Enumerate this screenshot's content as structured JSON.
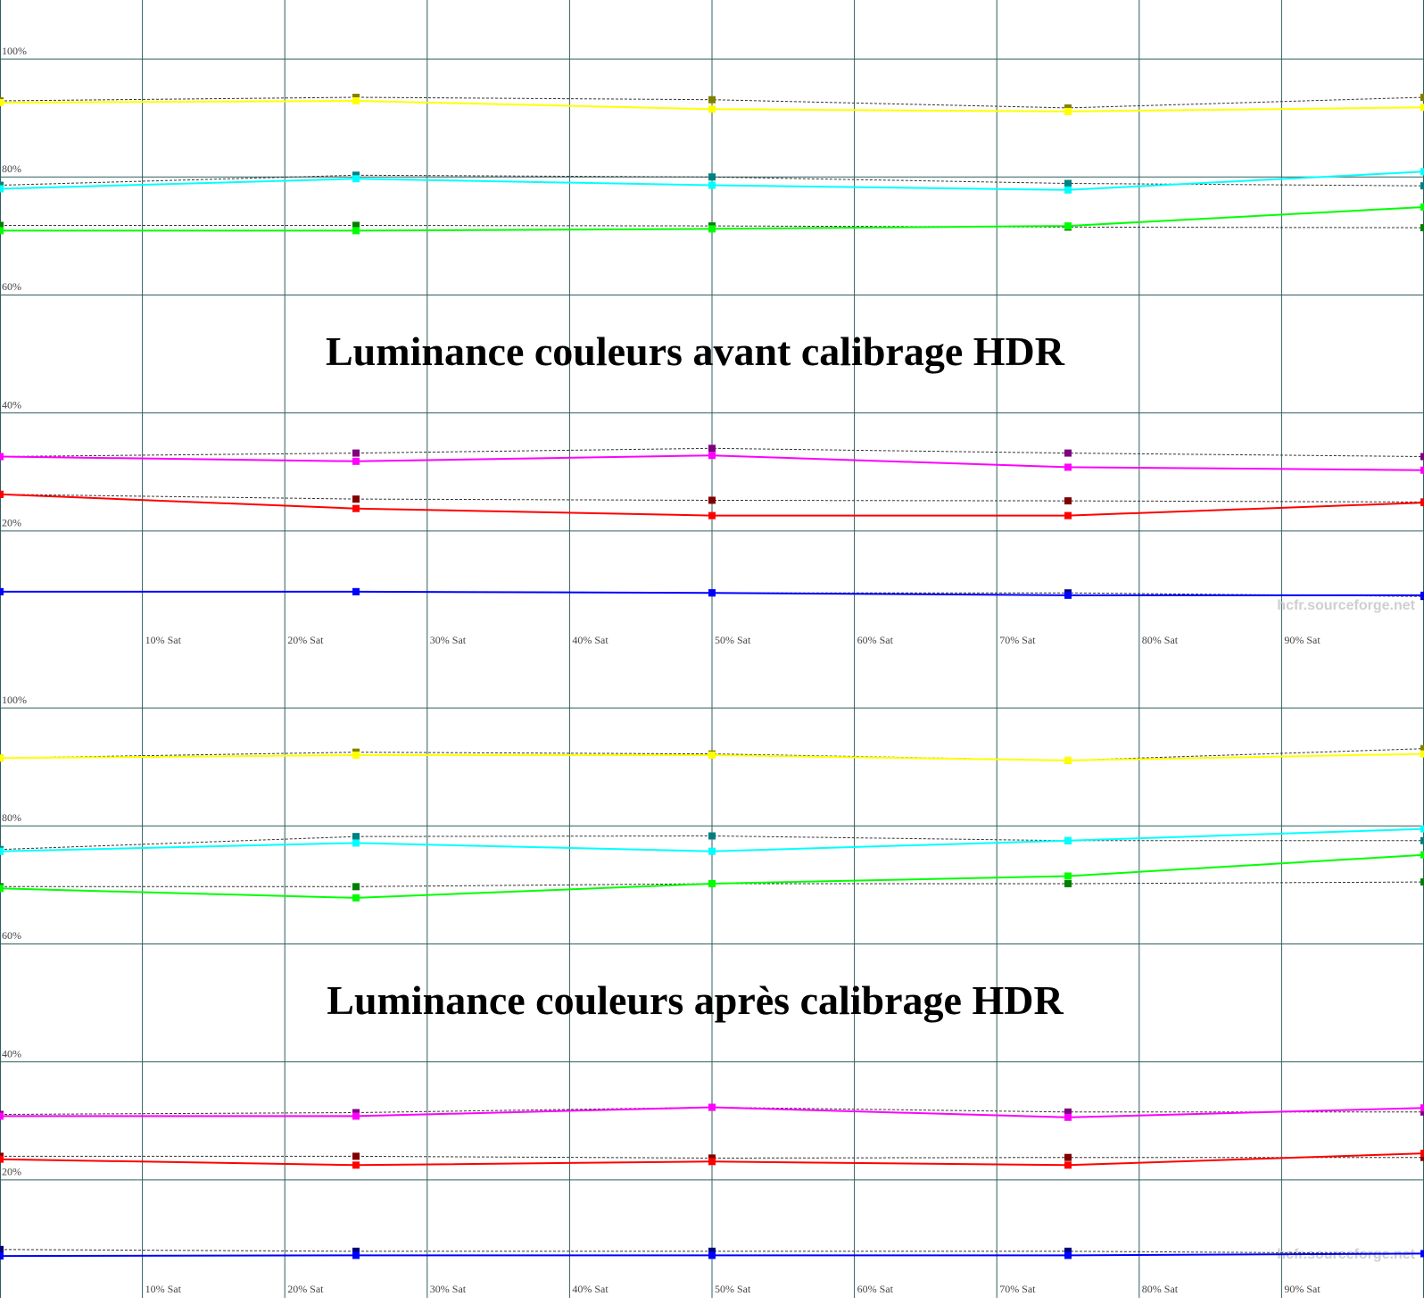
{
  "chart_data": [
    {
      "type": "line",
      "title": "Luminance couleurs avant calibrage HDR",
      "watermark": "hcfr.sourceforge.net",
      "x": [
        0,
        25,
        50,
        75,
        100
      ],
      "xlim": [
        0,
        100
      ],
      "ylim": [
        0,
        110
      ],
      "grid": true,
      "xticks": [
        {
          "value": 10,
          "label": "10% Sat"
        },
        {
          "value": 20,
          "label": "20% Sat"
        },
        {
          "value": 30,
          "label": "30% Sat"
        },
        {
          "value": 40,
          "label": "40% Sat"
        },
        {
          "value": 50,
          "label": "50% Sat"
        },
        {
          "value": 60,
          "label": "60% Sat"
        },
        {
          "value": 70,
          "label": "70% Sat"
        },
        {
          "value": 80,
          "label": "80% Sat"
        },
        {
          "value": 90,
          "label": "90% Sat"
        }
      ],
      "yticks": [
        {
          "value": 20,
          "label": "20%"
        },
        {
          "value": 40,
          "label": "40%"
        },
        {
          "value": 60,
          "label": "60%"
        },
        {
          "value": 80,
          "label": "80%"
        },
        {
          "value": 100,
          "label": "100%"
        }
      ],
      "series": [
        {
          "color": "#808000",
          "style": "dashed",
          "values": [
            92.9,
            93.5,
            93.1,
            91.7,
            93.5
          ]
        },
        {
          "color": "#ffff00",
          "style": "solid",
          "values": [
            92.6,
            92.9,
            91.5,
            91.1,
            91.8
          ]
        },
        {
          "color": "#008080",
          "style": "dashed",
          "values": [
            78.6,
            80.3,
            80.0,
            78.9,
            78.5
          ]
        },
        {
          "color": "#00ffff",
          "style": "solid",
          "values": [
            78.0,
            79.7,
            78.6,
            77.8,
            80.9
          ]
        },
        {
          "color": "#008000",
          "style": "dashed",
          "values": [
            71.8,
            71.8,
            71.7,
            71.5,
            71.4
          ]
        },
        {
          "color": "#00ff00",
          "style": "solid",
          "values": [
            70.9,
            70.9,
            71.2,
            71.7,
            74.9
          ]
        },
        {
          "color": "#800080",
          "style": "dashed",
          "values": [
            32.6,
            33.2,
            34.0,
            33.2,
            32.6
          ]
        },
        {
          "color": "#ff00ff",
          "style": "solid",
          "values": [
            32.6,
            31.8,
            32.8,
            30.8,
            30.3
          ]
        },
        {
          "color": "#800000",
          "style": "dashed",
          "values": [
            26.2,
            25.4,
            25.2,
            25.1,
            24.9
          ]
        },
        {
          "color": "#ff0000",
          "style": "solid",
          "values": [
            26.2,
            23.8,
            22.6,
            22.6,
            24.8
          ]
        },
        {
          "color": "#000080",
          "style": "dashed",
          "values": [
            9.7,
            9.7,
            9.5,
            9.5,
            8.9
          ]
        },
        {
          "color": "#0000ff",
          "style": "solid",
          "values": [
            9.7,
            9.7,
            9.5,
            9.1,
            9.1
          ]
        }
      ]
    },
    {
      "type": "line",
      "title": "Luminance couleurs après calibrage HDR",
      "watermark": "hcfr.sourceforge.net",
      "x": [
        0,
        25,
        50,
        75,
        100
      ],
      "xlim": [
        0,
        100
      ],
      "ylim": [
        0,
        110
      ],
      "grid": true,
      "xticks": [
        {
          "value": 10,
          "label": "10% Sat"
        },
        {
          "value": 20,
          "label": "20% Sat"
        },
        {
          "value": 30,
          "label": "30% Sat"
        },
        {
          "value": 40,
          "label": "40% Sat"
        },
        {
          "value": 50,
          "label": "50% Sat"
        },
        {
          "value": 60,
          "label": "60% Sat"
        },
        {
          "value": 70,
          "label": "70% Sat"
        },
        {
          "value": 80,
          "label": "80% Sat"
        },
        {
          "value": 90,
          "label": "90% Sat"
        }
      ],
      "yticks": [
        {
          "value": 20,
          "label": "20%"
        },
        {
          "value": 40,
          "label": "40%"
        },
        {
          "value": 60,
          "label": "60%"
        },
        {
          "value": 80,
          "label": "80%"
        },
        {
          "value": 100,
          "label": "100%"
        }
      ],
      "series": [
        {
          "color": "#808000",
          "style": "dashed",
          "values": [
            91.5,
            92.5,
            92.2,
            91.1,
            93.1
          ]
        },
        {
          "color": "#ffff00",
          "style": "solid",
          "values": [
            91.5,
            92.0,
            92.0,
            91.1,
            92.2
          ]
        },
        {
          "color": "#008080",
          "style": "dashed",
          "values": [
            76.0,
            78.2,
            78.3,
            77.5,
            77.5
          ]
        },
        {
          "color": "#00ffff",
          "style": "solid",
          "values": [
            75.7,
            77.1,
            75.7,
            77.5,
            79.5
          ]
        },
        {
          "color": "#008000",
          "style": "dashed",
          "values": [
            69.7,
            69.7,
            70.2,
            70.2,
            70.5
          ]
        },
        {
          "color": "#00ff00",
          "style": "solid",
          "values": [
            69.4,
            67.8,
            70.2,
            71.5,
            75.1
          ]
        },
        {
          "color": "#800080",
          "style": "dashed",
          "values": [
            31.1,
            31.4,
            32.3,
            31.5,
            31.5
          ]
        },
        {
          "color": "#ff00ff",
          "style": "solid",
          "values": [
            30.8,
            30.8,
            32.3,
            30.6,
            32.2
          ]
        },
        {
          "color": "#800000",
          "style": "dashed",
          "values": [
            24.0,
            24.0,
            23.7,
            23.8,
            23.8
          ]
        },
        {
          "color": "#ff0000",
          "style": "solid",
          "values": [
            23.5,
            22.5,
            23.1,
            22.5,
            24.5
          ]
        },
        {
          "color": "#000080",
          "style": "dashed",
          "values": [
            8.2,
            7.9,
            7.9,
            7.9,
            7.5
          ]
        },
        {
          "color": "#0000ff",
          "style": "solid",
          "values": [
            7.1,
            7.2,
            7.2,
            7.2,
            7.5
          ]
        }
      ]
    }
  ]
}
